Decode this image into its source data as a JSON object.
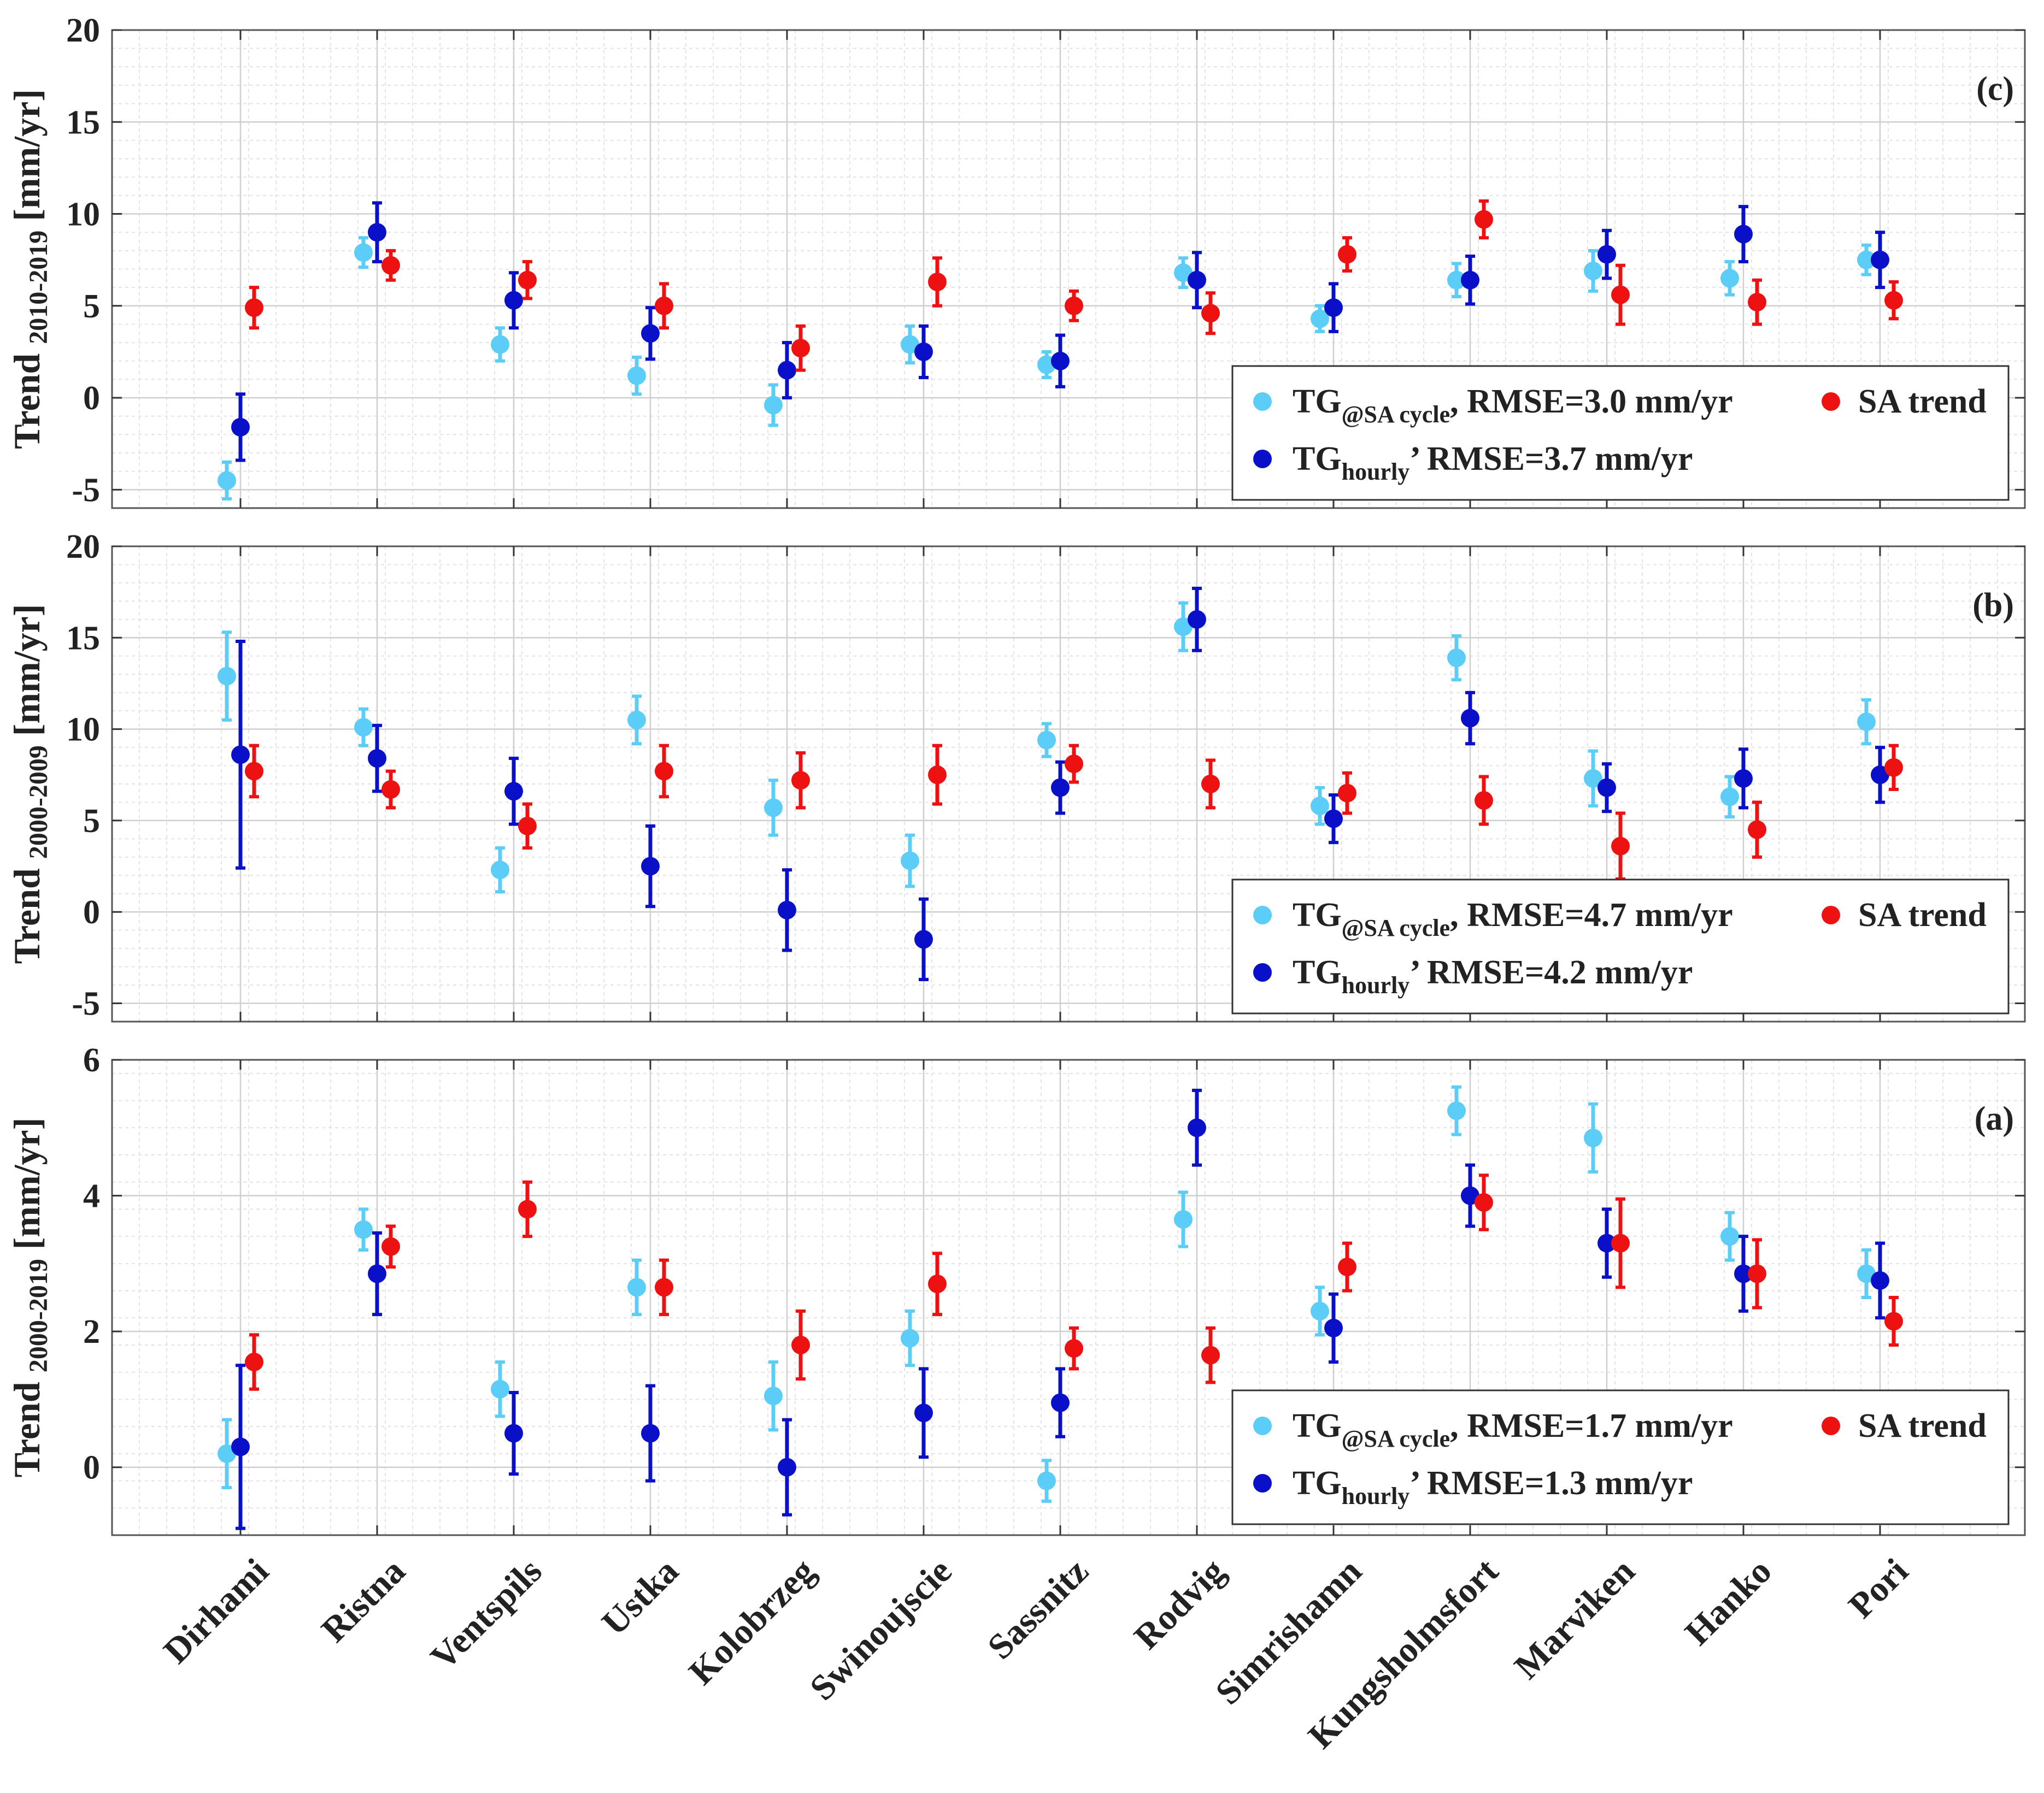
{
  "chart_data": {
    "type": "scatter",
    "categories": [
      "Dirhami",
      "Ristna",
      "Ventspils",
      "Ustka",
      "Kolobrzeg",
      "Swinoujscie",
      "Sassnitz",
      "Rodvig",
      "Simrishamn",
      "Kungsholmsfort",
      "Marviken",
      "Hanko",
      "Pori"
    ],
    "colors": {
      "tg_sa": "#5ccdf7",
      "tg_hourly": "#0a10c8",
      "sa_trend": "#ee1111"
    },
    "panels": [
      {
        "id": "c",
        "tag": "(c)",
        "ylabel": {
          "main": "Trend",
          "sub": "2010-2019",
          "unit": "[mm/yr]"
        },
        "ylim": [
          -6,
          20
        ],
        "yticks": [
          -5,
          0,
          5,
          10,
          15,
          20
        ],
        "ytick_labels": [
          "-5",
          "0",
          "5",
          "10",
          "15",
          "20"
        ],
        "legend": {
          "tg_sa_label": "TG",
          "tg_sa_sub": "@SA cycle",
          "tg_sa_rmse": ", RMSE=3.0 mm/yr",
          "tg_hourly_label": "TG",
          "tg_hourly_sub": "hourly",
          "tg_hourly_rmse": "’   RMSE=3.7 mm/yr",
          "sa_label": "SA trend"
        },
        "series": [
          {
            "name": "TG@SA cycle",
            "key": "tg_sa",
            "values": [
              -4.5,
              7.9,
              2.9,
              1.2,
              -0.4,
              2.9,
              1.8,
              6.8,
              4.3,
              6.4,
              6.9,
              6.5,
              7.5
            ],
            "err": [
              1.0,
              0.8,
              0.9,
              1.0,
              1.1,
              1.0,
              0.7,
              0.8,
              0.7,
              0.9,
              1.1,
              0.9,
              0.8
            ]
          },
          {
            "name": "TG hourly",
            "key": "tg_hourly",
            "values": [
              -1.6,
              9.0,
              5.3,
              3.5,
              1.5,
              2.5,
              2.0,
              6.4,
              4.9,
              6.4,
              7.8,
              8.9,
              7.5
            ],
            "err": [
              1.8,
              1.6,
              1.5,
              1.4,
              1.5,
              1.4,
              1.4,
              1.5,
              1.3,
              1.3,
              1.3,
              1.5,
              1.5
            ]
          },
          {
            "name": "SA trend",
            "key": "sa_trend",
            "values": [
              4.9,
              7.2,
              6.4,
              5.0,
              2.7,
              6.3,
              5.0,
              4.6,
              7.8,
              9.7,
              5.6,
              5.2,
              5.3
            ],
            "err": [
              1.1,
              0.8,
              1.0,
              1.2,
              1.2,
              1.3,
              0.8,
              1.1,
              0.9,
              1.0,
              1.6,
              1.2,
              1.0
            ]
          }
        ]
      },
      {
        "id": "b",
        "tag": "(b)",
        "ylabel": {
          "main": "Trend",
          "sub": "2000-2009",
          "unit": "[mm/yr]"
        },
        "ylim": [
          -6,
          20
        ],
        "yticks": [
          -5,
          0,
          5,
          10,
          15,
          20
        ],
        "ytick_labels": [
          "-5",
          "0",
          "5",
          "10",
          "15",
          "20"
        ],
        "legend": {
          "tg_sa_label": "TG",
          "tg_sa_sub": "@SA cycle",
          "tg_sa_rmse": ", RMSE=4.7 mm/yr",
          "tg_hourly_label": "TG",
          "tg_hourly_sub": "hourly",
          "tg_hourly_rmse": "’    RMSE=4.2 mm/yr",
          "sa_label": "SA trend"
        },
        "series": [
          {
            "name": "TG@SA cycle",
            "key": "tg_sa",
            "values": [
              12.9,
              10.1,
              2.3,
              10.5,
              5.7,
              2.8,
              9.4,
              15.6,
              5.8,
              13.9,
              7.3,
              6.3,
              10.4
            ],
            "err": [
              2.4,
              1.0,
              1.2,
              1.3,
              1.5,
              1.4,
              0.9,
              1.3,
              1.0,
              1.2,
              1.5,
              1.1,
              1.2
            ]
          },
          {
            "name": "TG hourly",
            "key": "tg_hourly",
            "values": [
              8.6,
              8.4,
              6.6,
              2.5,
              0.1,
              -1.5,
              6.8,
              16.0,
              5.1,
              10.6,
              6.8,
              7.3,
              7.5
            ],
            "err": [
              6.2,
              1.8,
              1.8,
              2.2,
              2.2,
              2.2,
              1.4,
              1.7,
              1.3,
              1.4,
              1.3,
              1.6,
              1.5
            ]
          },
          {
            "name": "SA trend",
            "key": "sa_trend",
            "values": [
              7.7,
              6.7,
              4.7,
              7.7,
              7.2,
              7.5,
              8.1,
              7.0,
              6.5,
              6.1,
              3.6,
              4.5,
              7.9
            ],
            "err": [
              1.4,
              1.0,
              1.2,
              1.4,
              1.5,
              1.6,
              1.0,
              1.3,
              1.1,
              1.3,
              1.8,
              1.5,
              1.2
            ]
          }
        ]
      },
      {
        "id": "a",
        "tag": "(a)",
        "ylabel": {
          "main": "Trend",
          "sub": "2000-2019",
          "unit": "[mm/yr]"
        },
        "ylim": [
          -1,
          6
        ],
        "yticks": [
          0,
          2,
          4,
          6
        ],
        "ytick_labels": [
          "0",
          "2",
          "4",
          "6"
        ],
        "legend": {
          "tg_sa_label": "TG",
          "tg_sa_sub": "@SA cycle",
          "tg_sa_rmse": ", RMSE=1.7 mm/yr",
          "tg_hourly_label": "TG",
          "tg_hourly_sub": "hourly",
          "tg_hourly_rmse": "’   RMSE=1.3 mm/yr",
          "sa_label": "SA trend"
        },
        "series": [
          {
            "name": "TG@SA cycle",
            "key": "tg_sa",
            "values": [
              0.2,
              3.5,
              1.15,
              2.65,
              1.05,
              1.9,
              -0.2,
              3.65,
              2.3,
              5.25,
              4.85,
              3.4,
              2.85
            ],
            "err": [
              0.5,
              0.3,
              0.4,
              0.4,
              0.5,
              0.4,
              0.3,
              0.4,
              0.35,
              0.35,
              0.5,
              0.35,
              0.35
            ]
          },
          {
            "name": "TG hourly",
            "key": "tg_hourly",
            "values": [
              0.3,
              2.85,
              0.5,
              0.5,
              0.0,
              0.8,
              0.95,
              5.0,
              2.05,
              4.0,
              3.3,
              2.85,
              2.75
            ],
            "err": [
              1.2,
              0.6,
              0.6,
              0.7,
              0.7,
              0.65,
              0.5,
              0.55,
              0.5,
              0.45,
              0.5,
              0.55,
              0.55
            ]
          },
          {
            "name": "SA trend",
            "key": "sa_trend",
            "values": [
              1.55,
              3.25,
              3.8,
              2.65,
              1.8,
              2.7,
              1.75,
              1.65,
              2.95,
              3.9,
              3.3,
              2.85,
              2.15
            ],
            "err": [
              0.4,
              0.3,
              0.4,
              0.4,
              0.5,
              0.45,
              0.3,
              0.4,
              0.35,
              0.4,
              0.65,
              0.5,
              0.35
            ]
          }
        ]
      }
    ]
  }
}
